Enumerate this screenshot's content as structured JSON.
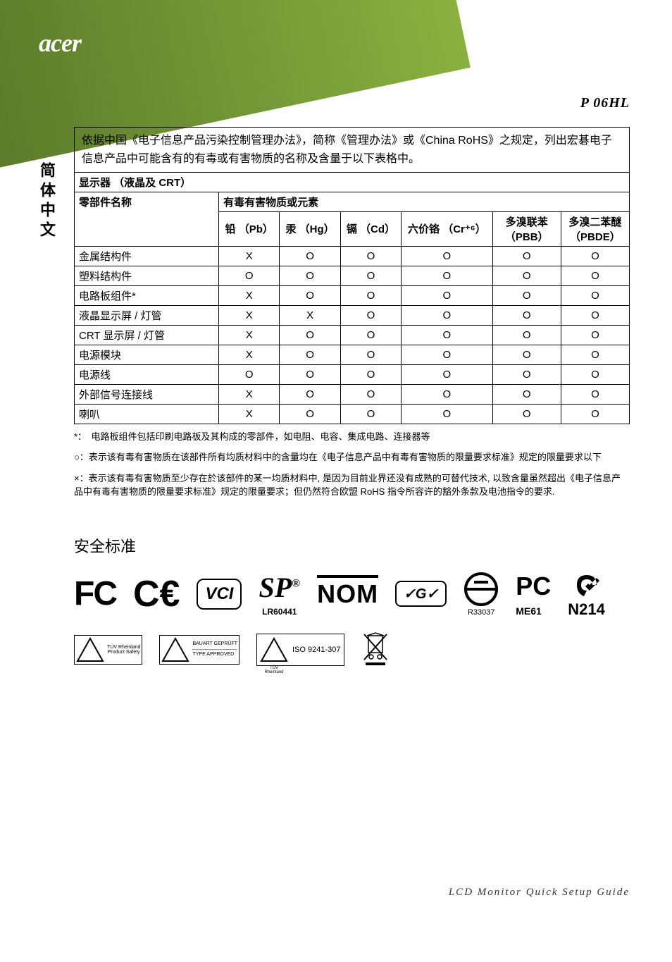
{
  "brand": "acer",
  "model": "P  06HL",
  "side_label": "简体中文",
  "intro": "依据中国《电子信息产品污染控制管理办法》，简称《管理办法》或《China RoHS》之规定，列出宏碁电子信息产品中可能含有的有毒或有害物质的名称及含量于以下表格中。",
  "table": {
    "section_title": "显示器 （液晶及 CRT）",
    "part_header": "零部件名称",
    "substance_header": "有毒有害物质或元素",
    "columns": [
      "铅 （Pb）",
      "汞 （Hg）",
      "镉 （Cd）",
      "六价铬 （Cr⁺⁶）",
      "多溴联苯（PBB）",
      "多溴二苯醚（PBDE）"
    ],
    "rows": [
      {
        "name": "金属结构件",
        "marks": [
          "X",
          "O",
          "O",
          "O",
          "O",
          "O"
        ]
      },
      {
        "name": "塑料结构件",
        "marks": [
          "O",
          "O",
          "O",
          "O",
          "O",
          "O"
        ]
      },
      {
        "name": "电路板组件*",
        "marks": [
          "X",
          "O",
          "O",
          "O",
          "O",
          "O"
        ]
      },
      {
        "name": "液晶显示屏 / 灯管",
        "marks": [
          "X",
          "X",
          "O",
          "O",
          "O",
          "O"
        ]
      },
      {
        "name": "CRT 显示屏 / 灯管",
        "marks": [
          "X",
          "O",
          "O",
          "O",
          "O",
          "O"
        ]
      },
      {
        "name": "电源模块",
        "marks": [
          "X",
          "O",
          "O",
          "O",
          "O",
          "O"
        ]
      },
      {
        "name": "电源线",
        "marks": [
          "O",
          "O",
          "O",
          "O",
          "O",
          "O"
        ]
      },
      {
        "name": "外部信号连接线",
        "marks": [
          "X",
          "O",
          "O",
          "O",
          "O",
          "O"
        ]
      },
      {
        "name": "喇叭",
        "marks": [
          "X",
          "O",
          "O",
          "O",
          "O",
          "O"
        ]
      }
    ]
  },
  "footnotes": {
    "star": "*：　电路板组件包括印刷电路板及其构成的零部件，如电阻、电容、集成电路、连接器等",
    "circle": "○：表示该有毒有害物质在该部件所有均质材料中的含量均在《电子信息产品中有毒有害物质的限量要求标准》规定的限量要求以下",
    "cross": "×：表示该有毒有害物质至少存在於该部件的某一均质材料中, 是因为目前业界还没有成熟的可替代技术, 以致含量虽然超出《电子信息产品中有毒有害物质的限量要求标准》规定的限量要求；但仍然符合欧盟 RoHS 指令所容许的豁外条款及电池指令的要求."
  },
  "safety_title": "安全标准",
  "logos": {
    "fc": "FC",
    "ce": "CE",
    "vci": "VCI",
    "sp": "SP",
    "sp_sub": "LR60441",
    "nom": "NOM",
    "g": "G",
    "r33037": "R33037",
    "pc": "PC",
    "me61": "ME61",
    "ctick": "✓",
    "n214": "N214",
    "tuv1_top": "BAUART GEPRÜFT",
    "tuv1_bottom": "TYPE APPROVED",
    "tuv_name": "TÜV Rheinland",
    "tuv_ps": "Product Safety",
    "iso": "ISO 9241-307"
  },
  "footer": "LCD  Monitor  Quick  Setup  Guide",
  "colors": {
    "stripe_start": "#5a7a2a",
    "stripe_end": "#8ab040",
    "text": "#000000",
    "bg": "#ffffff"
  }
}
